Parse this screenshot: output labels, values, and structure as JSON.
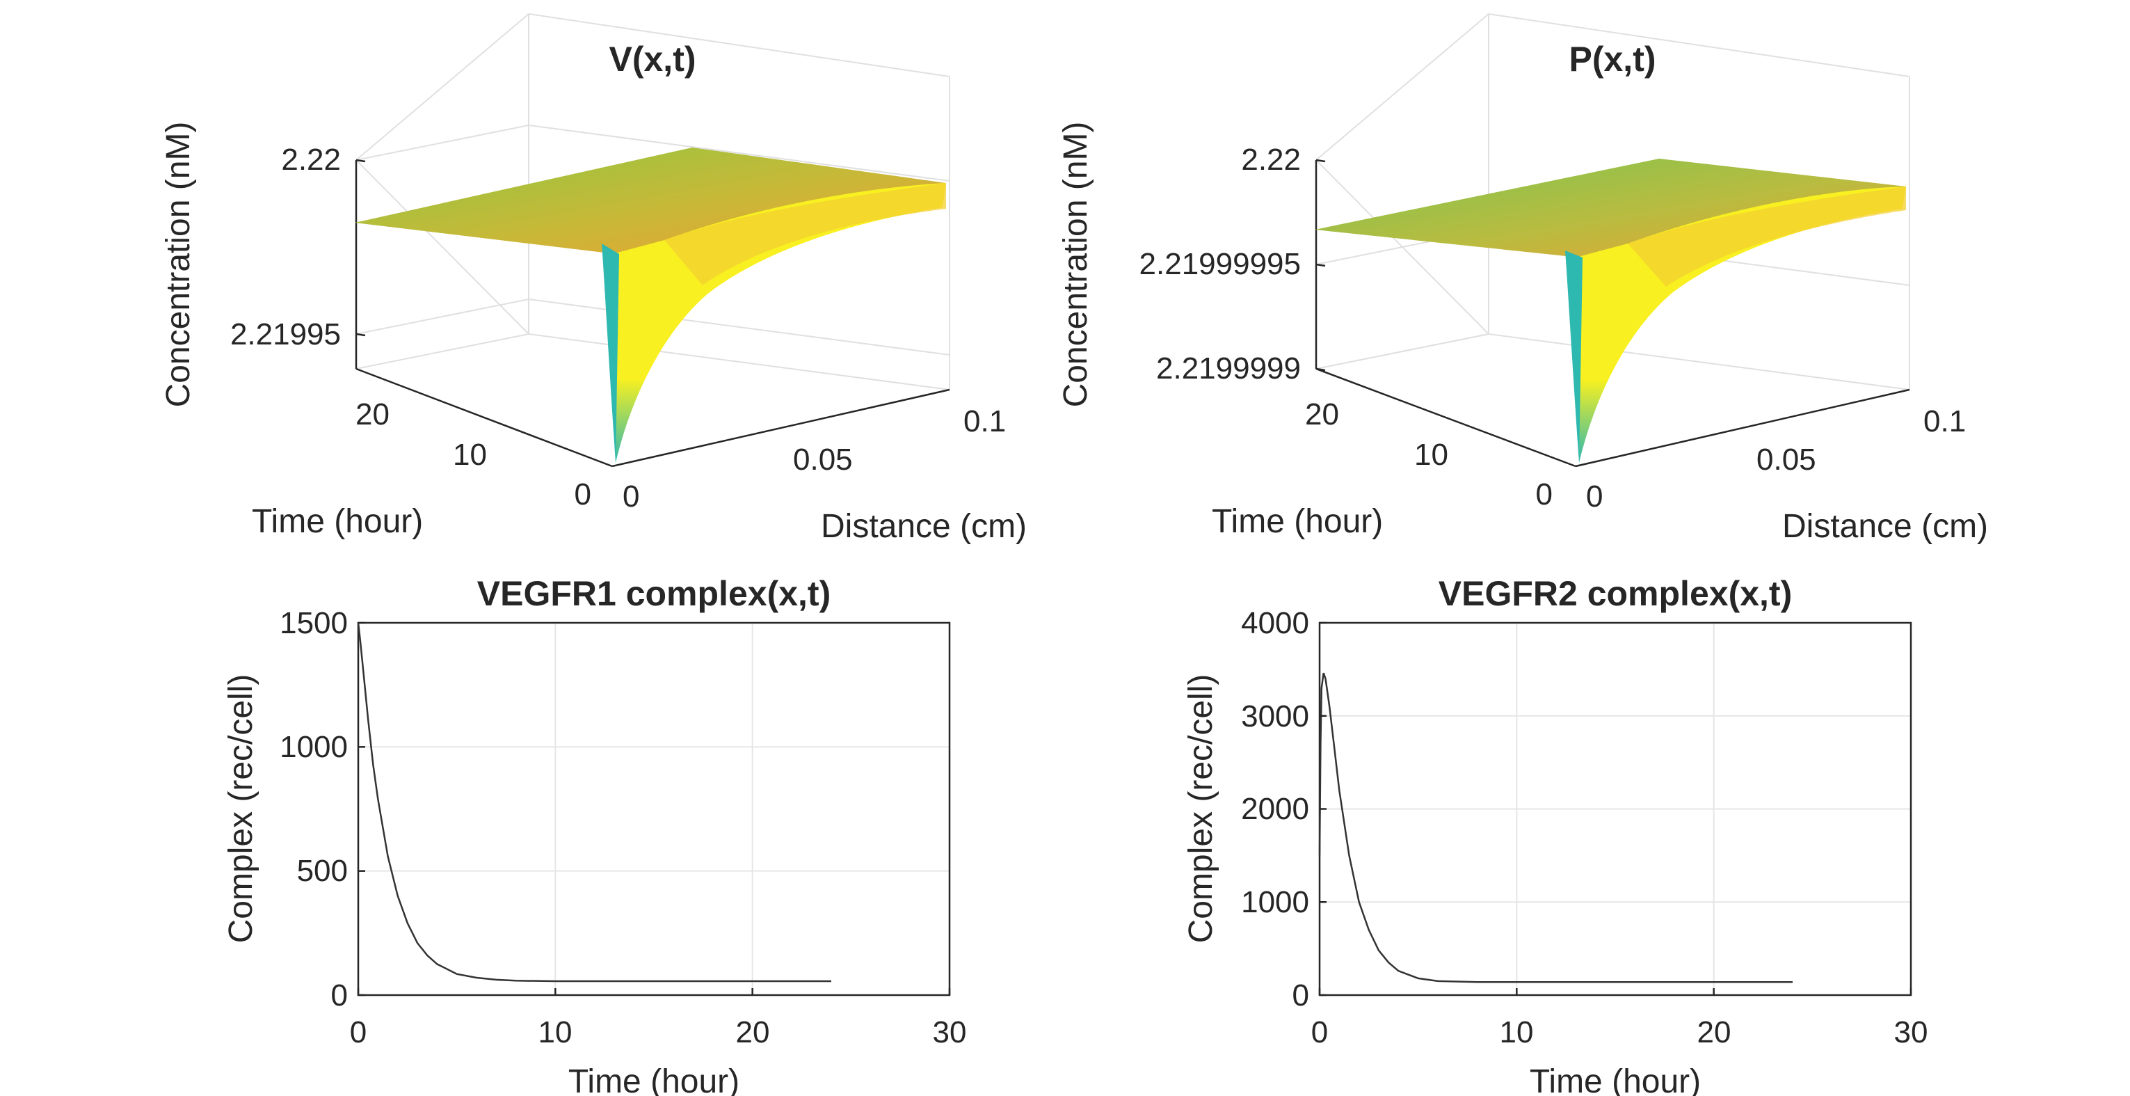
{
  "figure": {
    "panels": [
      {
        "title": "V(x,t)",
        "zlabel": "Concentration (nM)",
        "xlabel": "Distance (cm)",
        "ylabel": "Time (hour)",
        "z_ticks": [
          "2.22",
          "2.21995"
        ],
        "x_ticks": [
          "0",
          "0.05",
          "0.1"
        ],
        "t_ticks": [
          "0",
          "10",
          "20"
        ]
      },
      {
        "title": "P(x,t)",
        "zlabel": "Concentration (nM)",
        "xlabel": "Distance (cm)",
        "ylabel": "Time (hour)",
        "z_ticks": [
          "2.22",
          "2.21999995",
          "2.2199999"
        ],
        "x_ticks": [
          "0",
          "0.05",
          "0.1"
        ],
        "t_ticks": [
          "0",
          "10",
          "20"
        ]
      },
      {
        "title": "VEGFR1 complex(x,t)",
        "xlabel": "Time (hour)",
        "ylabel": "Complex (rec/cell)",
        "x_ticks": [
          "0",
          "10",
          "20",
          "30"
        ],
        "y_ticks": [
          "0",
          "500",
          "1000",
          "1500"
        ]
      },
      {
        "title": "VEGFR2 complex(x,t)",
        "xlabel": "Time (hour)",
        "ylabel": "Complex (rec/cell)",
        "x_ticks": [
          "0",
          "10",
          "20",
          "30"
        ],
        "y_ticks": [
          "0",
          "1000",
          "2000",
          "3000",
          "4000"
        ]
      }
    ]
  },
  "chart_data": [
    {
      "type": "surface",
      "title": "V(x,t)",
      "xlabel": "Distance (cm)",
      "ylabel": "Time (hour)",
      "zlabel": "Concentration (nM)",
      "xlim": [
        0,
        0.1
      ],
      "ylim": [
        0,
        24
      ],
      "zlim": [
        2.21991,
        2.22
      ],
      "plateau": 2.21998,
      "x_edge_values": [
        [
          0.0,
          2.21991
        ],
        [
          0.005,
          2.21995
        ],
        [
          0.01,
          2.219965
        ],
        [
          0.02,
          2.219975
        ],
        [
          0.04,
          2.21998
        ],
        [
          0.07,
          2.21998
        ],
        [
          0.1,
          2.21998
        ]
      ],
      "colormap": [
        "#2db8b0",
        "#8cc840",
        "#f0a030",
        "#f8f020"
      ]
    },
    {
      "type": "surface",
      "title": "P(x,t)",
      "xlabel": "Distance (cm)",
      "ylabel": "Time (hour)",
      "zlabel": "Concentration (nM)",
      "xlim": [
        0,
        0.1
      ],
      "ylim": [
        0,
        24
      ],
      "zlim": [
        2.21999985,
        2.22
      ],
      "plateau": 2.21999997,
      "x_edge_values": [
        [
          0.0,
          2.21999985
        ],
        [
          0.005,
          2.21999991
        ],
        [
          0.01,
          2.21999994
        ],
        [
          0.02,
          2.21999996
        ],
        [
          0.04,
          2.21999997
        ],
        [
          0.07,
          2.21999997
        ],
        [
          0.1,
          2.21999997
        ]
      ],
      "colormap": [
        "#2db8b0",
        "#8cc840",
        "#f0a030",
        "#f8f020"
      ]
    },
    {
      "type": "line",
      "title": "VEGFR1 complex(x,t)",
      "xlabel": "Time (hour)",
      "ylabel": "Complex (rec/cell)",
      "xlim": [
        0,
        30
      ],
      "ylim": [
        0,
        1500
      ],
      "grid": true,
      "x": [
        0,
        0.1,
        0.25,
        0.5,
        0.75,
        1,
        1.5,
        2,
        2.5,
        3,
        3.5,
        4,
        5,
        6,
        7,
        8,
        10,
        12,
        15,
        20,
        24
      ],
      "series": [
        {
          "values": [
            1500,
            1430,
            1310,
            1110,
            930,
            790,
            560,
            400,
            290,
            210,
            160,
            125,
            85,
            70,
            62,
            58,
            56,
            56,
            56,
            56,
            56
          ]
        }
      ]
    },
    {
      "type": "line",
      "title": "VEGFR2 complex(x,t)",
      "xlabel": "Time (hour)",
      "ylabel": "Complex (rec/cell)",
      "xlim": [
        0,
        30
      ],
      "ylim": [
        0,
        4000
      ],
      "grid": true,
      "x": [
        0,
        0.05,
        0.1,
        0.2,
        0.3,
        0.5,
        0.75,
        1,
        1.5,
        2,
        2.5,
        3,
        3.5,
        4,
        5,
        6,
        8,
        10,
        15,
        20,
        24
      ],
      "series": [
        {
          "values": [
            1500,
            2700,
            3300,
            3460,
            3400,
            3100,
            2650,
            2200,
            1500,
            1000,
            700,
            480,
            350,
            260,
            180,
            150,
            140,
            140,
            140,
            140,
            140
          ]
        }
      ]
    }
  ]
}
